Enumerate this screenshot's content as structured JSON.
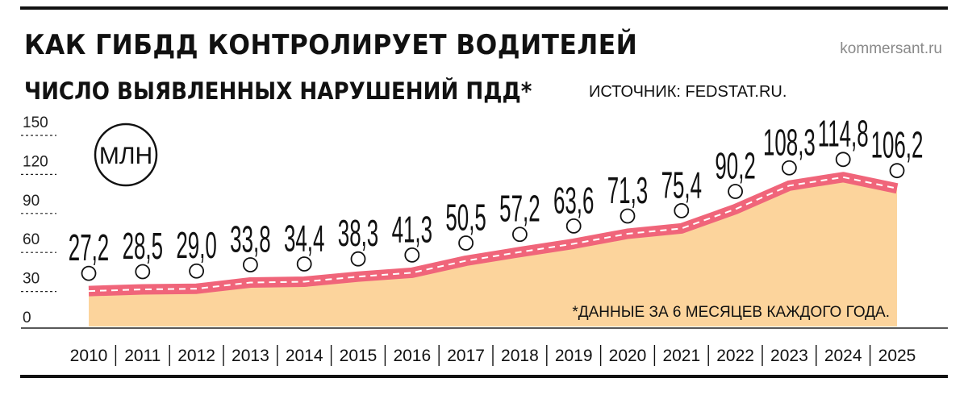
{
  "header": {
    "title": "КАК ГИБДД КОНТРОЛИРУЕТ ВОДИТЕЛЕЙ",
    "site": "kommersant.ru",
    "subtitle": "ЧИСЛО ВЫЯВЛЕННЫХ НАРУШЕНИЙ ПДД*",
    "source": "ИСТОЧНИК: FEDSTAT.RU."
  },
  "chart_data": {
    "type": "area",
    "unit_label": "МЛН",
    "note": "*ДАННЫЕ ЗА 6 МЕСЯЦЕВ КАЖДОГО ГОДА.",
    "categories": [
      "2010",
      "2011",
      "2012",
      "2013",
      "2014",
      "2015",
      "2016",
      "2017",
      "2018",
      "2019",
      "2020",
      "2021",
      "2022",
      "2023",
      "2024",
      "2025"
    ],
    "values": [
      27.2,
      28.5,
      29.0,
      33.8,
      34.4,
      38.3,
      41.3,
      50.5,
      57.2,
      63.6,
      71.3,
      75.4,
      90.2,
      108.3,
      114.8,
      106.2
    ],
    "value_labels": [
      "27,2",
      "28,5",
      "29,0",
      "33,8",
      "34,4",
      "38,3",
      "41,3",
      "50,5",
      "57,2",
      "63,6",
      "71,3",
      "75,4",
      "90,2",
      "108,3",
      "114,8",
      "106,2"
    ],
    "yticks": [
      0,
      30,
      60,
      90,
      120,
      150
    ],
    "ylim": [
      0,
      150
    ],
    "colors": {
      "area": "#fcd49c",
      "line": "#f0657a",
      "dash": "#ffffff"
    }
  }
}
